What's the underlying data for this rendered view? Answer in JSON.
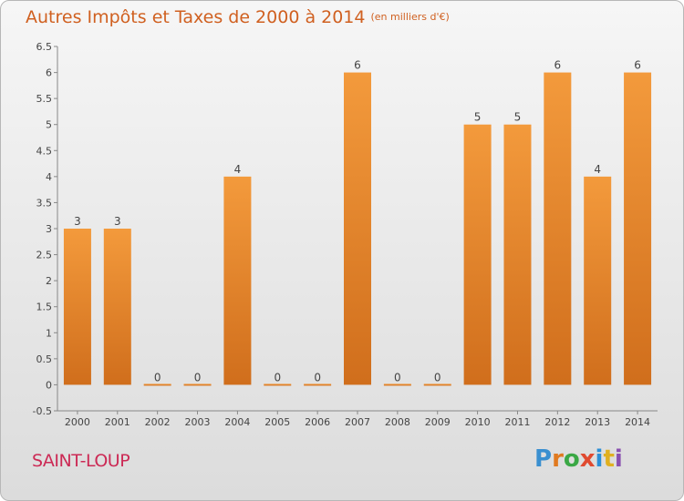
{
  "title": "Autres Impôts et Taxes de 2000 à 2014",
  "unit": "(en milliers d'€)",
  "commune": "SAINT-LOUP",
  "logo": {
    "letters": [
      "P",
      "r",
      "o",
      "x",
      "i",
      "t",
      "i"
    ],
    "colors": [
      "#3a8fd0",
      "#e07a20",
      "#3aa845",
      "#e04a30",
      "#2c8fd6",
      "#e0b020",
      "#8a50b0"
    ]
  },
  "chart_data": {
    "type": "bar",
    "title": "Autres Impôts et Taxes de 2000 à 2014",
    "subtitle": "(en milliers d'€)",
    "categories": [
      "2000",
      "2001",
      "2002",
      "2003",
      "2004",
      "2005",
      "2006",
      "2007",
      "2008",
      "2009",
      "2010",
      "2011",
      "2012",
      "2013",
      "2014"
    ],
    "values": [
      3,
      3,
      0,
      0,
      4,
      0,
      0,
      6,
      0,
      0,
      5,
      5,
      6,
      4,
      6
    ],
    "data_labels": [
      "3",
      "3",
      "0",
      "0",
      "4",
      "0",
      "0",
      "6",
      "0",
      "0",
      "5",
      "5",
      "6",
      "4",
      "6"
    ],
    "ylim": [
      -0.5,
      6.5
    ],
    "yticks": [
      -0.5,
      0,
      0.5,
      1,
      1.5,
      2,
      2.5,
      3,
      3.5,
      4,
      4.5,
      5,
      5.5,
      6,
      6.5
    ],
    "ytick_labels": [
      "-0.5",
      "0",
      "0.5",
      "1",
      "1.5",
      "2",
      "2.5",
      "3",
      "3.5",
      "4",
      "4.5",
      "5",
      "5.5",
      "6",
      "6.5"
    ],
    "grid": false,
    "bar_color": "#f39a3c",
    "bar_color_dark": "#d06e1c"
  }
}
